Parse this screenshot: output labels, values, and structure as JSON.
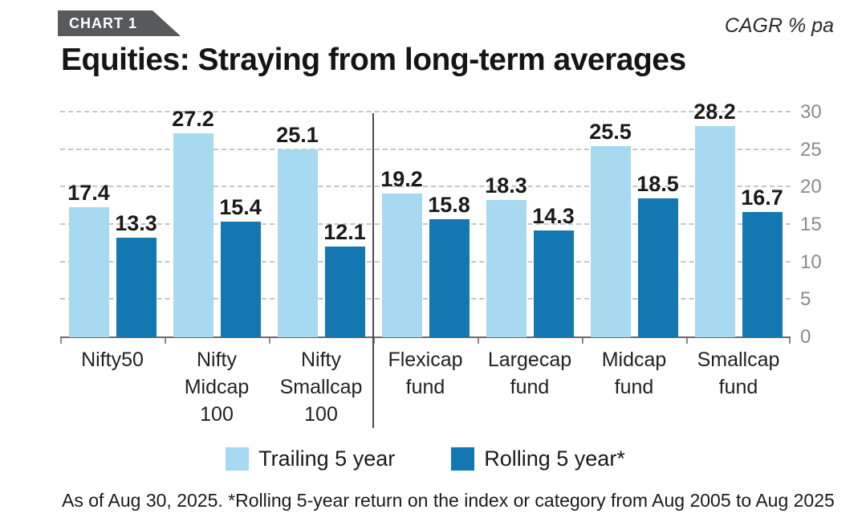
{
  "badge": {
    "label": "CHART 1"
  },
  "corner_label": "CAGR % pa",
  "title": "Equities: Straying from long-term averages",
  "legend": [
    {
      "label": "Trailing 5 year",
      "color": "#a7d9f1"
    },
    {
      "label": "Rolling 5 year*",
      "color": "#1377b2"
    }
  ],
  "footnote": "As of Aug 30, 2025. *Rolling 5-year return on the index or category from Aug 2005 to Aug 2025",
  "chart_data": {
    "type": "bar",
    "title": "Equities: Straying from long-term averages",
    "unit_label": "CAGR % pa",
    "categories": [
      "Nifty50",
      "Nifty\nMidcap\n100",
      "Nifty\nSmallcap\n100",
      "Flexicap\nfund",
      "Largecap\nfund",
      "Midcap\nfund",
      "Smallcap\nfund"
    ],
    "series": [
      {
        "name": "Trailing 5 year",
        "color": "#a7d9f1",
        "values": [
          17.4,
          27.2,
          25.1,
          19.2,
          18.3,
          25.5,
          28.2
        ]
      },
      {
        "name": "Rolling 5 year*",
        "color": "#1377b2",
        "values": [
          13.3,
          15.4,
          12.1,
          15.8,
          14.3,
          18.5,
          16.7
        ]
      }
    ],
    "ylim": [
      0,
      30
    ],
    "yticks": [
      0,
      5,
      10,
      15,
      20,
      25,
      30
    ],
    "ytick_side": "right",
    "grid": "horizontal-dashed",
    "legend_position": "bottom",
    "separator_after_category_index": 2
  }
}
